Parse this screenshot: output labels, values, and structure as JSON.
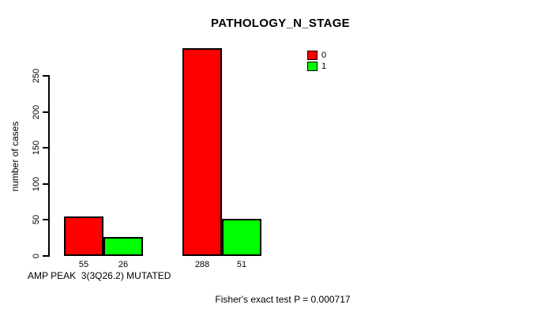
{
  "page": {
    "background": "#ffffff"
  },
  "chart_data": {
    "type": "bar",
    "title": "PATHOLOGY_N_STAGE",
    "ylabel": "number of cases",
    "xlabel": "AMP PEAK  3(3Q26.2) MUTATED",
    "footer": "Fisher's exact test P = 0.000717",
    "ylim": [
      0,
      250
    ],
    "yticks": [
      0,
      50,
      100,
      150,
      200,
      250
    ],
    "grid": false,
    "legend_position": "top-right",
    "bar_border_color": "#000000",
    "series": [
      {
        "name": "0",
        "color": "#ff0000",
        "values": [
          55,
          288
        ]
      },
      {
        "name": "1",
        "color": "#00ff00",
        "values": [
          26,
          51
        ]
      }
    ],
    "bar_value_labels": [
      [
        "55",
        "288"
      ],
      [
        "26",
        "51"
      ]
    ],
    "legend": [
      {
        "label": "0",
        "color": "#ff0000"
      },
      {
        "label": "1",
        "color": "#00ff00"
      }
    ]
  }
}
